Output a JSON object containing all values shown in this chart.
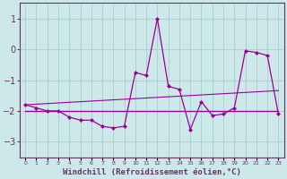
{
  "x": [
    0,
    1,
    2,
    3,
    4,
    5,
    6,
    7,
    8,
    9,
    10,
    11,
    12,
    13,
    14,
    15,
    16,
    17,
    18,
    19,
    20,
    21,
    22,
    23
  ],
  "y_main": [
    -1.8,
    -1.9,
    -2.0,
    -2.0,
    -2.2,
    -2.3,
    -2.3,
    -2.5,
    -2.55,
    -2.5,
    -0.75,
    -0.85,
    1.0,
    -1.2,
    -1.3,
    -2.6,
    -1.7,
    -2.15,
    -2.1,
    -1.9,
    -0.05,
    -0.1,
    -0.2,
    -2.1
  ],
  "y_trend_flat": [
    -2.0,
    -2.0,
    -2.0,
    -2.0,
    -2.0,
    -2.0,
    -2.0,
    -2.0,
    -2.0,
    -2.0,
    -2.0,
    -2.0,
    -2.0,
    -2.0,
    -2.0,
    -2.0,
    -2.0,
    -2.0,
    -2.0,
    -2.0,
    -2.0,
    -2.0,
    -2.0,
    -2.0
  ],
  "y_trend_rise": [
    -1.8,
    -1.78,
    -1.76,
    -1.74,
    -1.72,
    -1.7,
    -1.68,
    -1.66,
    -1.64,
    -1.62,
    -1.6,
    -1.58,
    -1.56,
    -1.54,
    -1.52,
    -1.5,
    -1.48,
    -1.46,
    -1.44,
    -1.42,
    -1.4,
    -1.38,
    -1.36,
    -1.34
  ],
  "background_color": "#cce8e8",
  "grid_color": "#aacccc",
  "line_color": "#990099",
  "spine_color": "#663366",
  "xlabel": "Windchill (Refroidissement éolien,°C)",
  "ylim": [
    -3.5,
    1.5
  ],
  "yticks": [
    -3,
    -2,
    -1,
    0,
    1
  ],
  "xlim": [
    -0.5,
    23.5
  ]
}
